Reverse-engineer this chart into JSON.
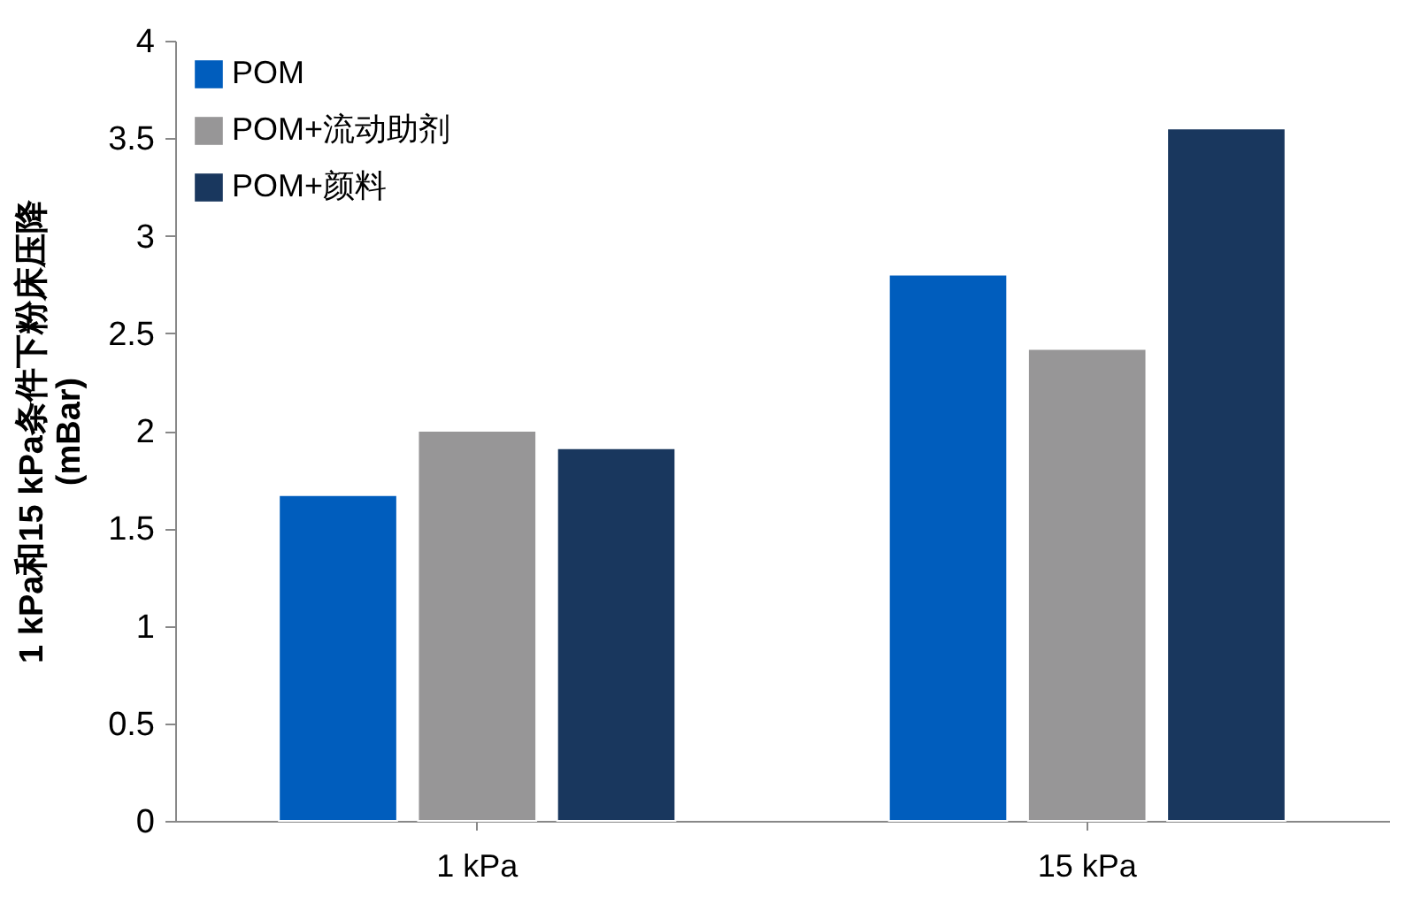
{
  "chart_data": {
    "type": "bar",
    "ylabel": "1 kPa和15 kPa条件下粉床压降\n(mBar)",
    "categories": [
      "1 kPa",
      "15 kPa"
    ],
    "series": [
      {
        "name": "POM",
        "color": "#005dbd",
        "values": [
          1.67,
          2.8
        ]
      },
      {
        "name": "POM+流动助剂",
        "color": "#979697",
        "values": [
          2.0,
          2.42
        ]
      },
      {
        "name": "POM+颜料",
        "color": "#19375e",
        "values": [
          1.91,
          3.55
        ]
      }
    ],
    "ylim": [
      0,
      4
    ],
    "yticks": [
      0,
      0.5,
      1,
      1.5,
      2,
      2.5,
      3,
      3.5,
      4
    ],
    "grid": false,
    "legend": "top left"
  }
}
